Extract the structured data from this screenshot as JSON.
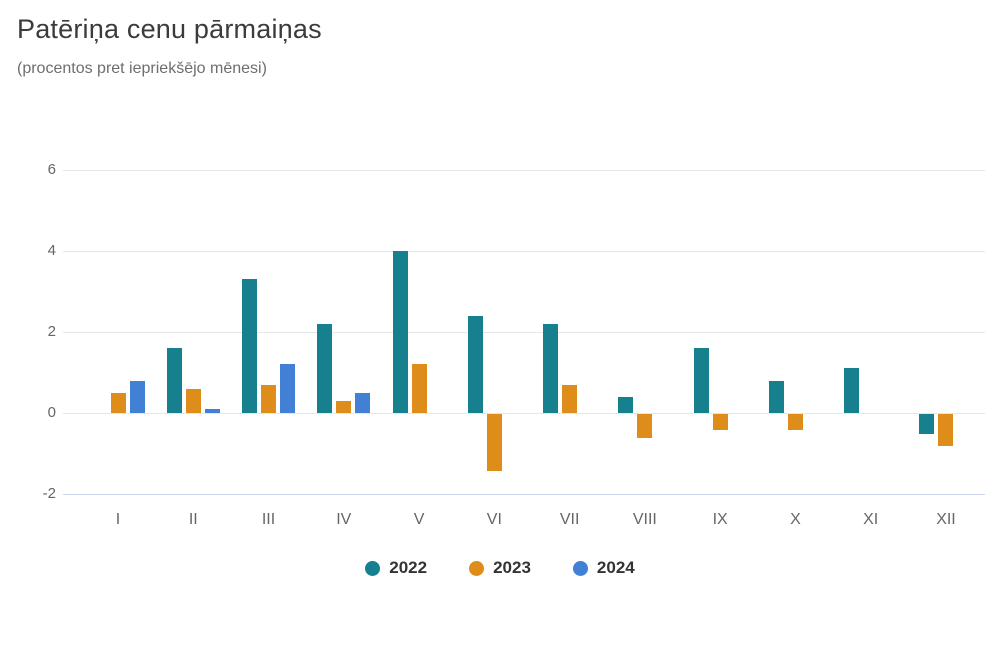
{
  "chart_data": {
    "type": "bar",
    "title": "Patēriņa cenu pārmaiņas",
    "subtitle": "(procentos pret iepriekšējo mēnesi)",
    "categories": [
      "I",
      "II",
      "III",
      "IV",
      "V",
      "VI",
      "VII",
      "VIII",
      "IX",
      "X",
      "XI",
      "XII"
    ],
    "series": [
      {
        "name": "2022",
        "color": "#16808F",
        "values": [
          0,
          1.6,
          3.3,
          2.2,
          4.0,
          2.4,
          2.2,
          0.4,
          1.6,
          0.8,
          1.1,
          -0.5
        ]
      },
      {
        "name": "2023",
        "color": "#DE8D1B",
        "values": [
          0.5,
          0.6,
          0.7,
          0.3,
          1.2,
          -1.4,
          0.7,
          -0.6,
          -0.4,
          -0.4,
          0,
          -0.8
        ]
      },
      {
        "name": "2024",
        "color": "#4280D5",
        "values": [
          0.8,
          0.1,
          1.2,
          0.5,
          null,
          null,
          null,
          null,
          null,
          null,
          null,
          null
        ]
      }
    ],
    "yticks": [
      6,
      4,
      2,
      0,
      -2
    ],
    "ylim": [
      -2.3,
      6.6
    ],
    "xlabel": "",
    "ylabel": "",
    "grid": true,
    "legend_position": "bottom",
    "grid_color": "#e6e6e6",
    "axis_line_color": "#ccd6eb",
    "label_color": "#666666"
  }
}
